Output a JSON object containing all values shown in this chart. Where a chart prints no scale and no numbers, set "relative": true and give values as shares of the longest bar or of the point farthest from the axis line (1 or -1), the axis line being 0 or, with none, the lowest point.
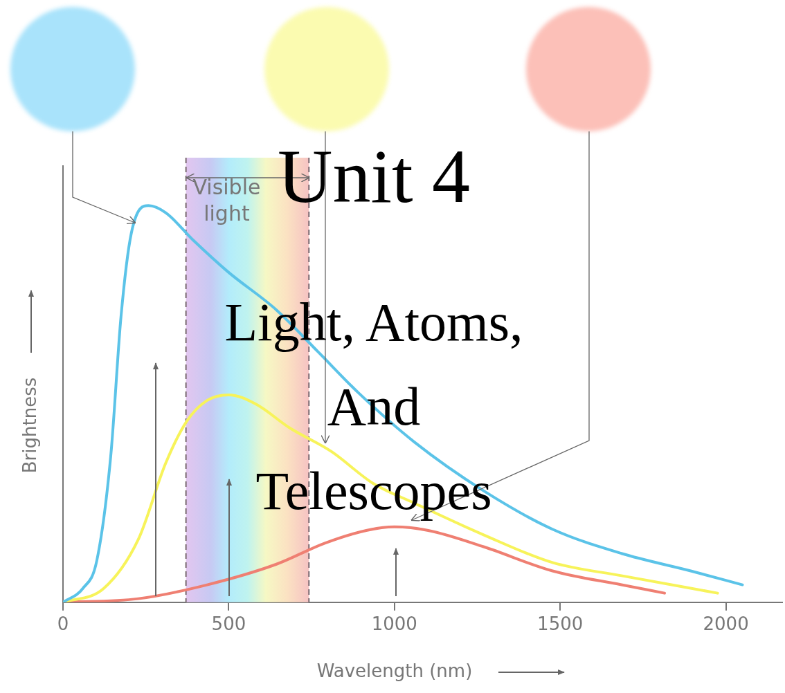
{
  "chart_data": {
    "type": "line",
    "title": "Unit 4",
    "subtitle": "Light, Atoms, And Telescopes",
    "xlabel": "Wavelength (nm)",
    "ylabel": "Brightness",
    "relative": true,
    "xlim": [
      0,
      2170
    ],
    "xticks": [
      0,
      500,
      1000,
      1500,
      2000
    ],
    "series": [
      {
        "color": "#5bc3e8",
        "x": [
          0,
          60,
          102,
          144,
          175,
          206,
          258,
          310,
          394,
          498,
          644,
          769,
          894,
          1060,
          1269,
          1477,
          1685,
          1894,
          2050
        ],
        "values": [
          0,
          0.035,
          0.105,
          0.368,
          0.72,
          0.93,
          1,
          0.982,
          0.912,
          0.833,
          0.737,
          0.632,
          0.526,
          0.404,
          0.281,
          0.184,
          0.123,
          0.079,
          0.044
        ]
      },
      {
        "color": "#f7f35a",
        "x": [
          0,
          123,
          227,
          310,
          373,
          435,
          500,
          581,
          685,
          810,
          935,
          1060,
          1269,
          1477,
          1685,
          1975
        ],
        "values": [
          0,
          0.035,
          0.158,
          0.351,
          0.456,
          0.509,
          0.523,
          0.5,
          0.439,
          0.38,
          0.3,
          0.25,
          0.17,
          0.1,
          0.067,
          0.023
        ]
      },
      {
        "color": "#ef7f72",
        "x": [
          0,
          227,
          435,
          644,
          790,
          915,
          1000,
          1102,
          1269,
          1477,
          1685,
          1815
        ],
        "values": [
          0,
          0.009,
          0.044,
          0.096,
          0.149,
          0.181,
          0.19,
          0.181,
          0.14,
          0.079,
          0.044,
          0.023
        ]
      }
    ],
    "bands": [
      {
        "axis": "x",
        "from": 371,
        "to": 742,
        "label": "Visible light"
      }
    ],
    "ref_lines": [
      {
        "axis": "x",
        "value": 371,
        "line_style": "dashed",
        "color": "#7a6a70"
      },
      {
        "axis": "x",
        "value": 742,
        "line_style": "dashed",
        "color": "#7a6a70"
      }
    ],
    "grid": false,
    "legend": false,
    "marker": "none",
    "line_style": "solid"
  }
}
